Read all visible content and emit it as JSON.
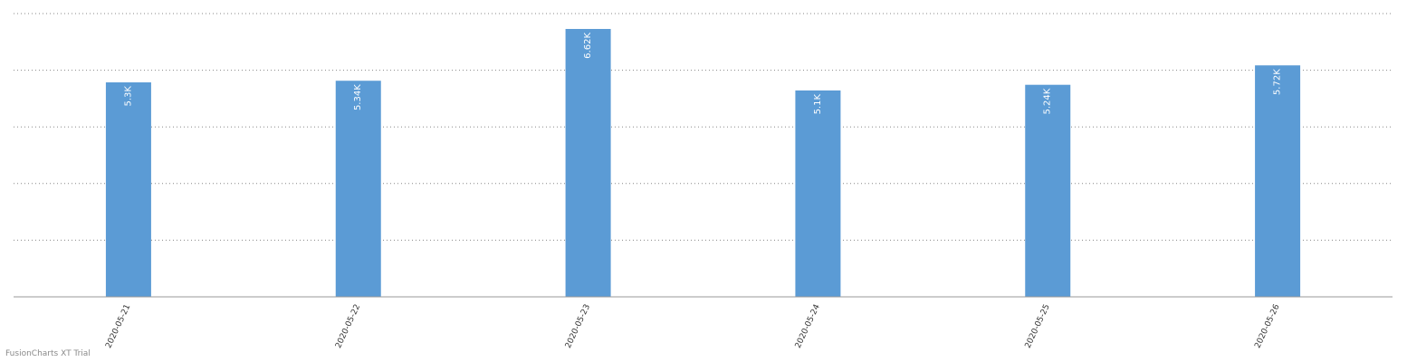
{
  "chart_data": {
    "type": "bar",
    "title": "",
    "xlabel": "",
    "ylabel": "",
    "categories": [
      "2020-05-21",
      "2020-05-22",
      "2020-05-23",
      "2020-05-24",
      "2020-05-25",
      "2020-05-26"
    ],
    "values": [
      5300,
      5340,
      6620,
      5100,
      5240,
      5720
    ],
    "value_labels": [
      "5.3K",
      "5.34K",
      "6.62K",
      "5.1K",
      "5.24K",
      "5.72K"
    ],
    "ylim": [
      0,
      7000
    ],
    "grid": true,
    "legend": "none",
    "bar_color": "#5b9bd5",
    "label_color": "#ffffff",
    "grid_color": "#888888",
    "axis_color": "#999999"
  },
  "watermark": "FusionCharts XT Trial"
}
